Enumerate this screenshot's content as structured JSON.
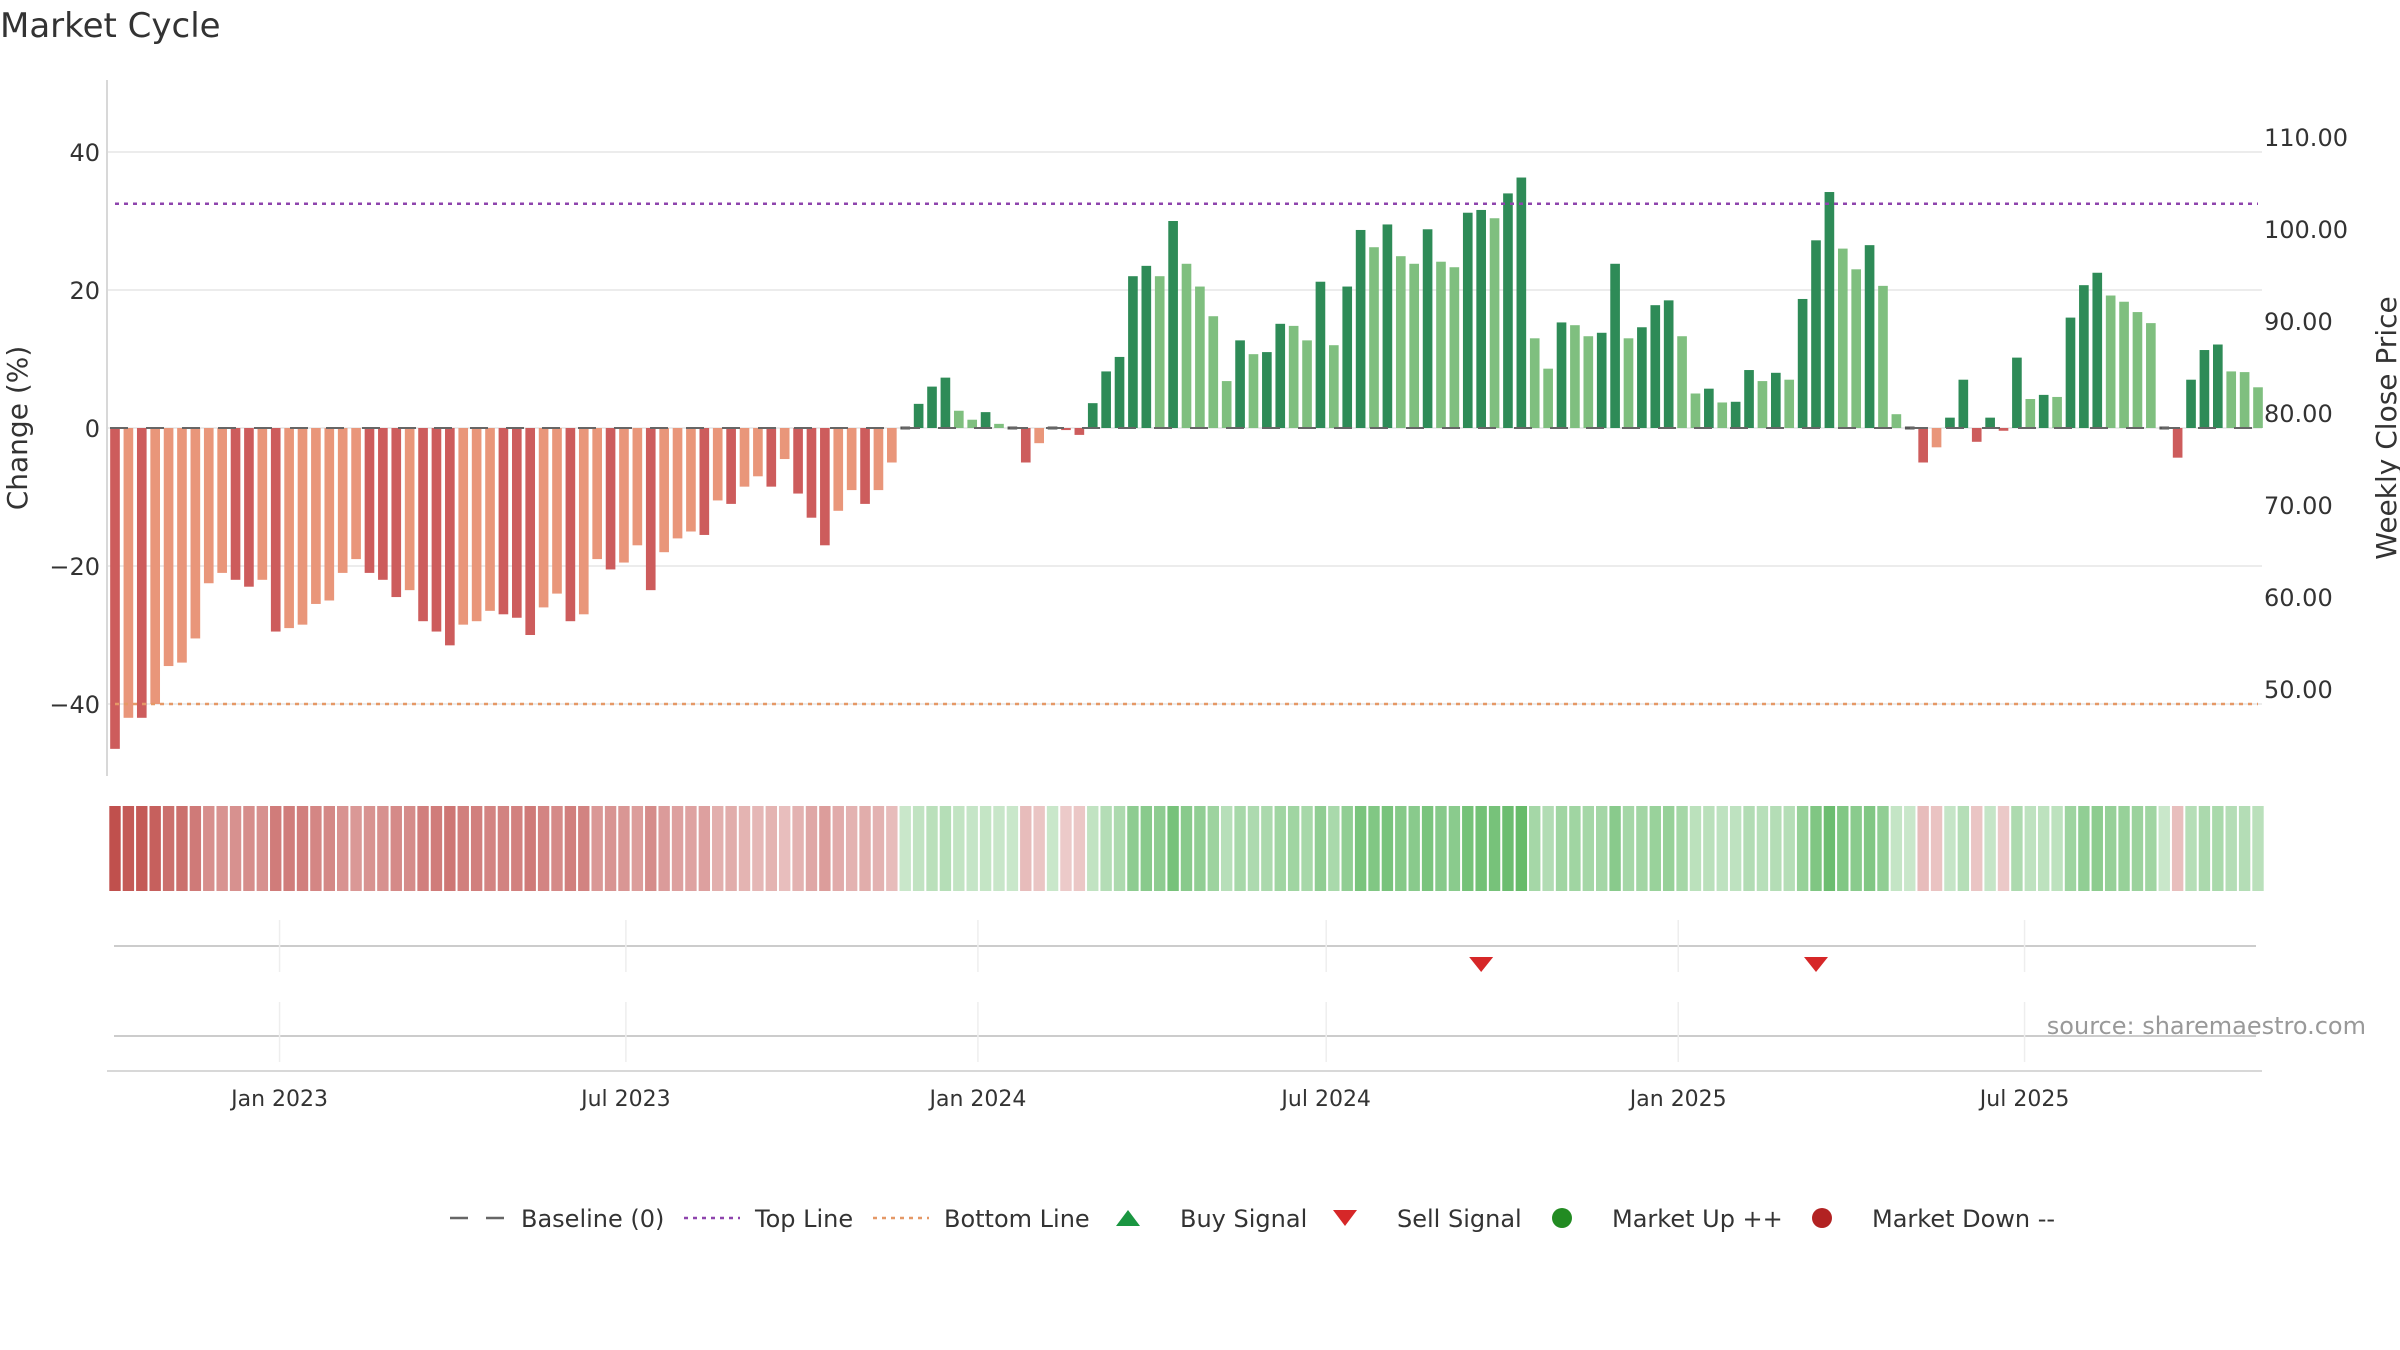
{
  "title": "Market Cycle",
  "source": "source: sharemaestro.com",
  "colors": {
    "strong_up": "#2e8b57",
    "weak_up": "#7fbf7f",
    "strong_down": "#cd5c5c",
    "weak_down": "#e9967a",
    "top_line": "#8e44ad",
    "bottom_line": "#e59866",
    "buy": "#1a9641",
    "sell": "#d62728",
    "market_up": "#228b22",
    "market_down": "#b22222",
    "baseline": "#666666"
  },
  "chart_data": {
    "type": "bar",
    "title": "Market Cycle",
    "ylabel": "Change (%)",
    "ylabel_right": "Weekly Close Price",
    "ylim": [
      -50,
      50
    ],
    "yticks": [
      40,
      20,
      0,
      -20,
      -40
    ],
    "ytick_labels": [
      "40",
      "20",
      "0",
      "−20",
      "−40"
    ],
    "right_yticks": [
      110,
      100,
      90,
      80,
      70,
      60,
      50
    ],
    "right_ytick_labels": [
      "110.00",
      "100.00",
      "90.00",
      "80.00",
      "70.00",
      "60.00",
      "50.00"
    ],
    "top_line": 32.5,
    "bottom_line": -40,
    "baseline": 0,
    "x_start": "2022-10-07",
    "x_step_days": 7,
    "x_ticks": [
      "2023-01-01",
      "2023-07-01",
      "2024-01-01",
      "2024-07-01",
      "2025-01-01",
      "2025-07-01"
    ],
    "x_tick_labels": [
      "Jan 2023",
      "Jul 2023",
      "Jan 2024",
      "Jul 2024",
      "Jan 2025",
      "Jul 2025"
    ],
    "values": [
      -46.5,
      -42,
      -42,
      -40,
      -34.5,
      -34,
      -30.5,
      -22.5,
      -21,
      -22,
      -23,
      -22,
      -29.5,
      -29,
      -28.5,
      -25.5,
      -25,
      -21,
      -19,
      -21,
      -22,
      -24.5,
      -23.5,
      -28,
      -29.5,
      -31.5,
      -28.5,
      -28,
      -26.5,
      -27,
      -27.5,
      -30,
      -26,
      -24,
      -28,
      -27,
      -19,
      -20.5,
      -19.5,
      -17,
      -23.5,
      -18,
      -16,
      -15,
      -15.5,
      -10.5,
      -11,
      -8.5,
      -7,
      -8.5,
      -4.5,
      -9.5,
      -13,
      -17,
      -12,
      -9,
      -11,
      -9,
      -5,
      0,
      3.5,
      6,
      7.3,
      2.5,
      1.2,
      2.3,
      0.6,
      0,
      -5,
      -2.2,
      0,
      -0.3,
      -1,
      3.6,
      8.2,
      10.3,
      22,
      23.5,
      22,
      30,
      23.8,
      20.5,
      16.2,
      6.8,
      12.7,
      10.7,
      11,
      15.1,
      14.8,
      12.7,
      21.2,
      12,
      20.5,
      28.7,
      26.2,
      29.5,
      24.9,
      23.8,
      28.8,
      24.1,
      23.3,
      31.2,
      31.6,
      30.4,
      34,
      36.3,
      13,
      8.6,
      15.3,
      14.9,
      13.3,
      13.8,
      23.8,
      13,
      14.6,
      17.8,
      18.5,
      13.3,
      5,
      5.7,
      3.7,
      3.8,
      8.4,
      6.8,
      8,
      7,
      18.7,
      27.2,
      34.2,
      26,
      23,
      26.5,
      20.6,
      2,
      0,
      -5,
      -2.8,
      1.5,
      7,
      -2,
      1.5,
      -0.4,
      10.2,
      4.2,
      4.8,
      4.5,
      16,
      20.7,
      22.5,
      19.2,
      18.3,
      16.8,
      15.2,
      0,
      -4.3,
      7,
      11.3,
      12.1,
      8.2,
      8.1,
      5.9
    ],
    "signals": [
      {
        "type": "sell",
        "date": "2024-09-20"
      },
      {
        "type": "sell",
        "date": "2025-03-14"
      }
    ]
  },
  "legend": [
    {
      "key": "baseline",
      "label": "Baseline (0)"
    },
    {
      "key": "top",
      "label": "Top Line"
    },
    {
      "key": "bottom",
      "label": "Bottom Line"
    },
    {
      "key": "buy",
      "label": "Buy Signal"
    },
    {
      "key": "sell",
      "label": "Sell Signal"
    },
    {
      "key": "up",
      "label": "Market Up ++"
    },
    {
      "key": "down",
      "label": "Market Down --"
    }
  ]
}
